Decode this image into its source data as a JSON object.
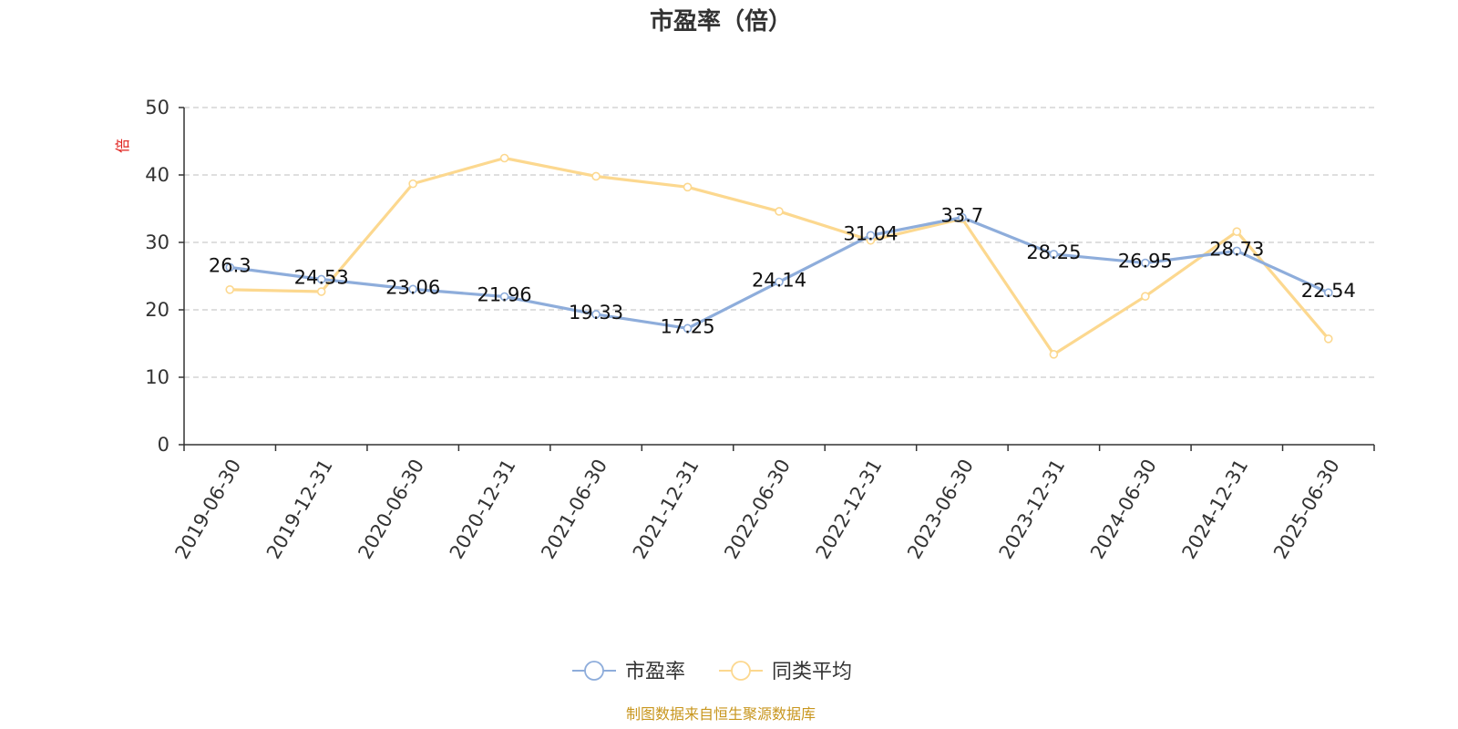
{
  "chart_data": {
    "type": "line",
    "title": "市盈率（倍）",
    "ylabel": "倍",
    "xlabel": "",
    "ylim": [
      0,
      50
    ],
    "yticks": [
      0,
      10,
      20,
      30,
      40,
      50
    ],
    "grid": true,
    "legend_position": "bottom",
    "categories": [
      "2019-06-30",
      "2019-12-31",
      "2020-06-30",
      "2020-12-31",
      "2021-06-30",
      "2021-12-31",
      "2022-06-30",
      "2022-12-31",
      "2023-06-30",
      "2023-12-31",
      "2024-06-30",
      "2024-12-31",
      "2025-06-30"
    ],
    "series": [
      {
        "name": "市盈率",
        "color": "#8eaddb",
        "show_labels": true,
        "values": [
          26.3,
          24.53,
          23.06,
          21.96,
          19.33,
          17.25,
          24.14,
          31.04,
          33.7,
          28.25,
          26.95,
          28.73,
          22.54
        ],
        "labels": [
          "26.3",
          "24.53",
          "23.06",
          "21.96",
          "19.33",
          "17.25",
          "24.14",
          "31.04",
          "33.7",
          "28.25",
          "26.95",
          "28.73",
          "22.54"
        ]
      },
      {
        "name": "同类平均",
        "color": "#fcd88f",
        "show_labels": false,
        "values": [
          23.0,
          22.7,
          38.7,
          42.5,
          39.8,
          38.2,
          34.6,
          30.3,
          33.5,
          13.4,
          22.0,
          31.6,
          15.7
        ]
      }
    ],
    "source": "制图数据来自恒生聚源数据库"
  }
}
